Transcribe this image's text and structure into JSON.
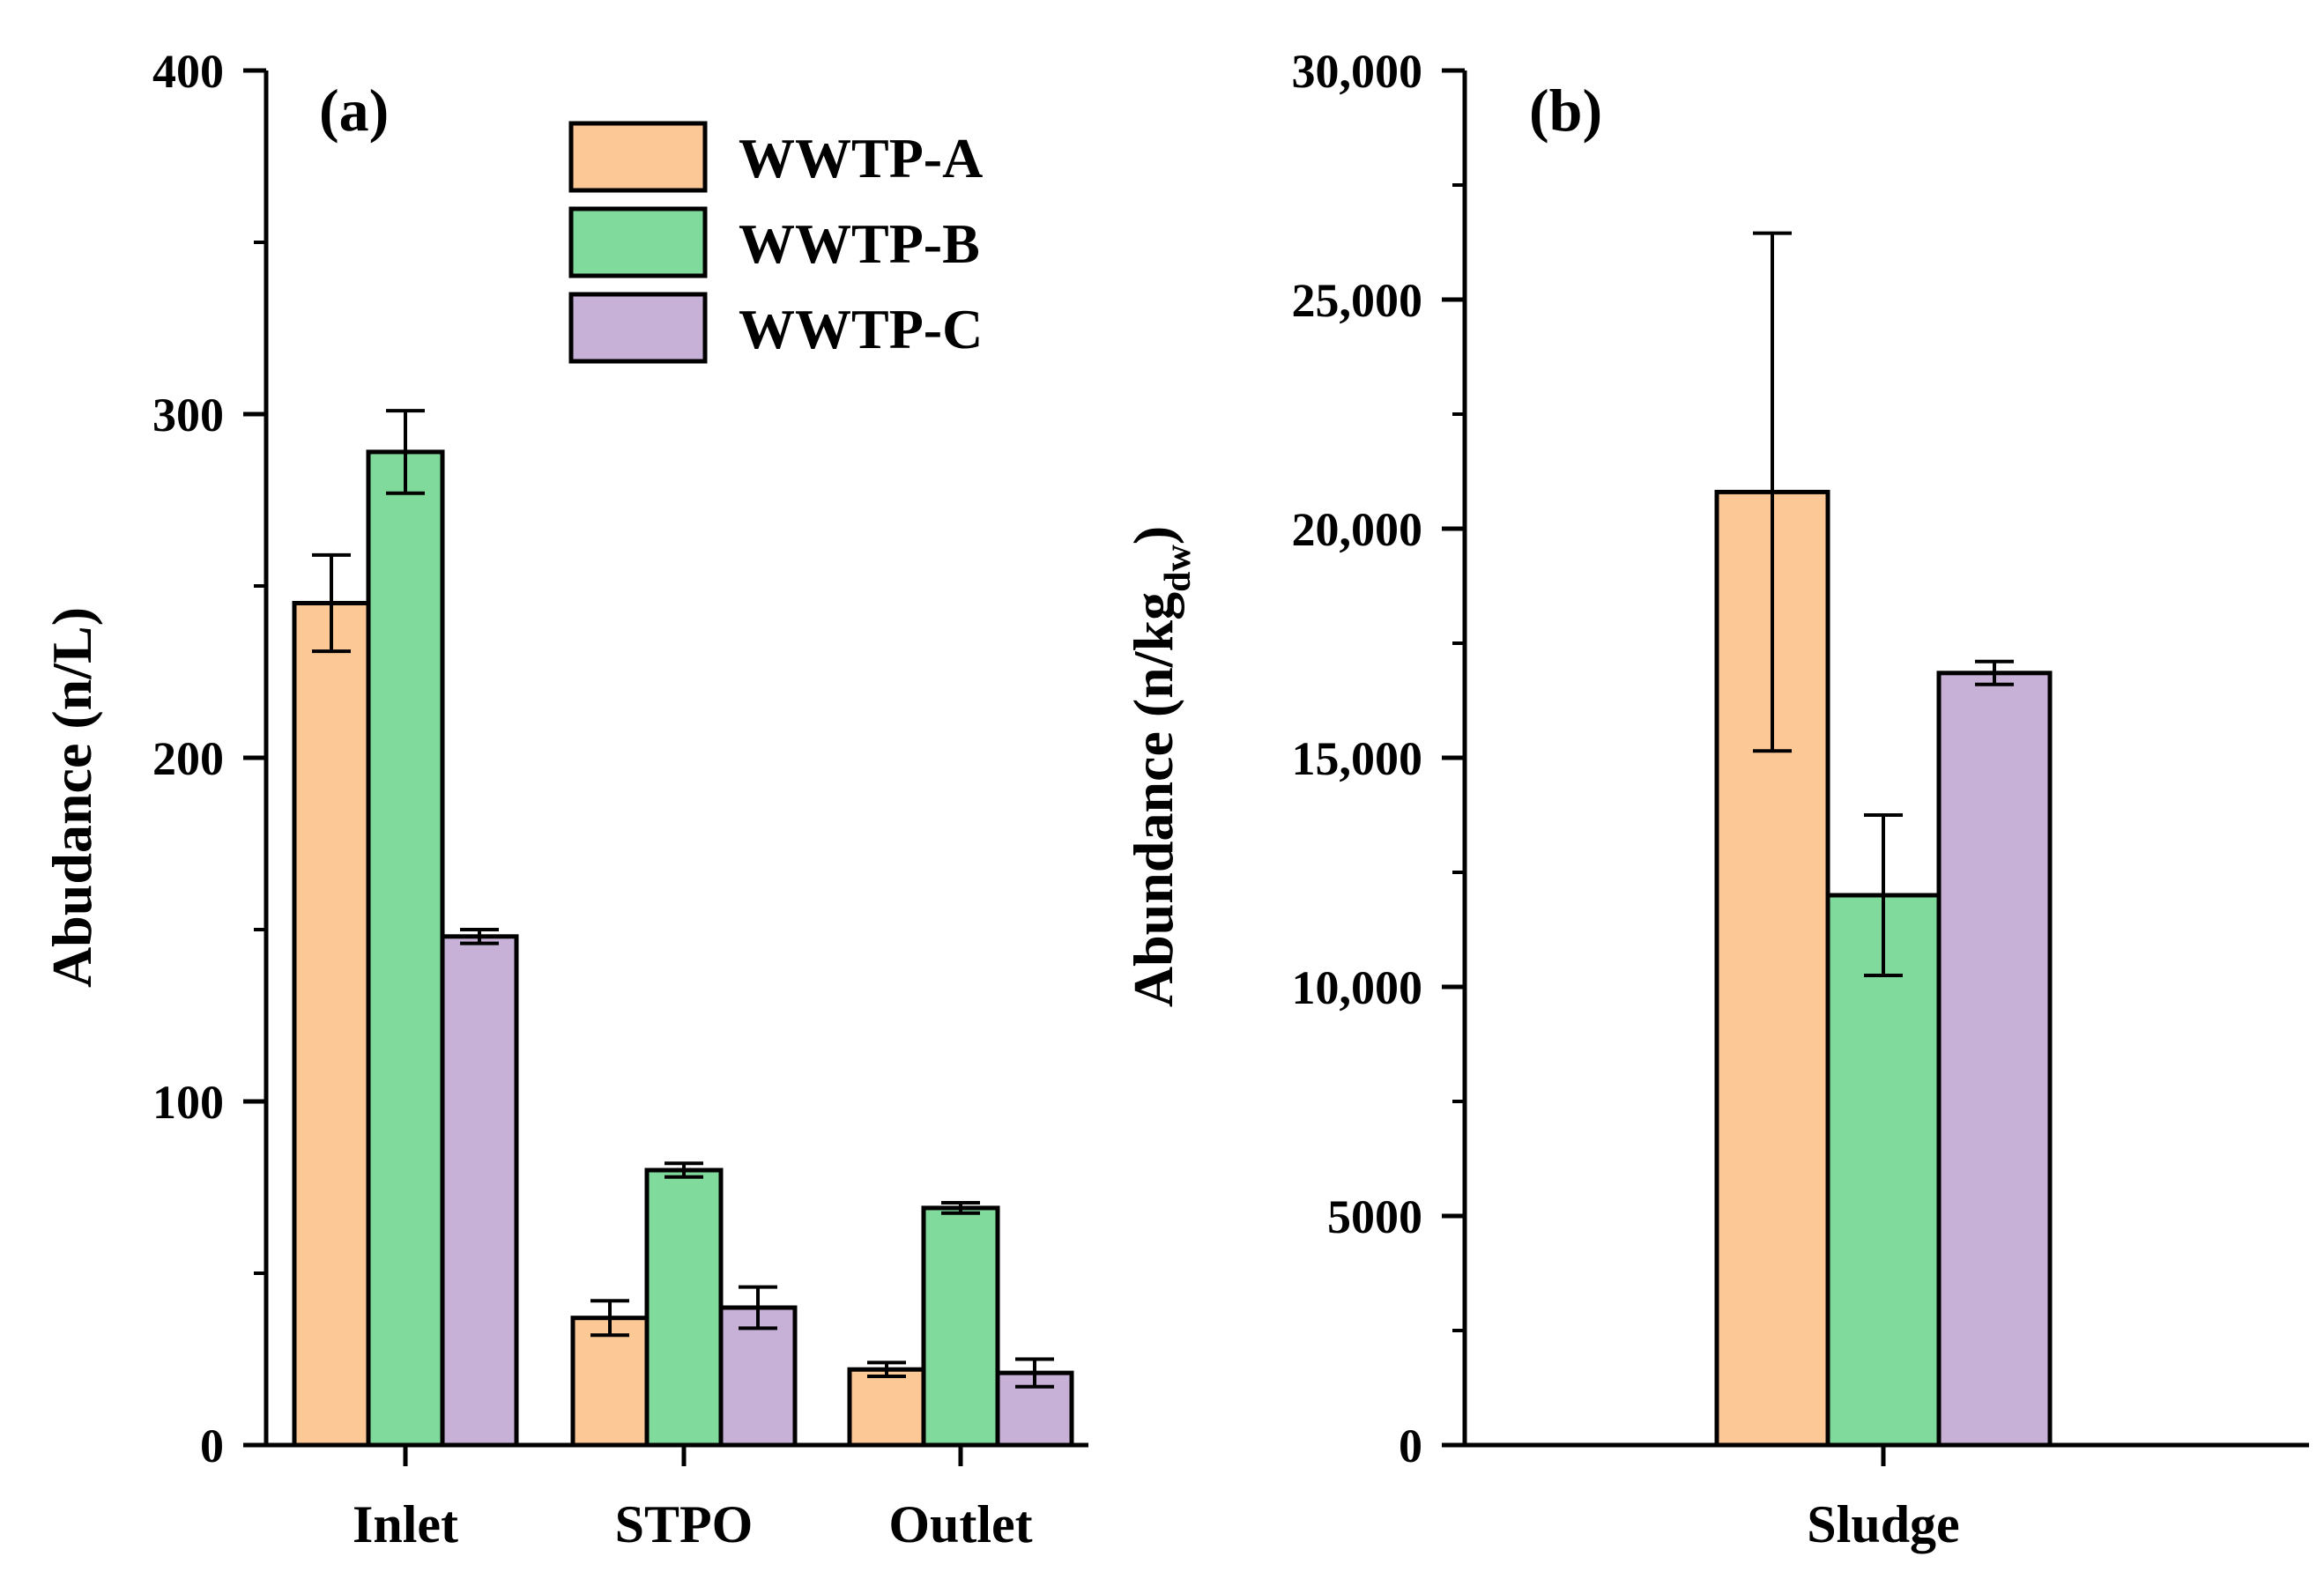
{
  "chart_data": [
    {
      "type": "bar",
      "panel_label": "(a)",
      "categories": [
        "Inlet",
        "STPO",
        "Outlet"
      ],
      "series": [
        {
          "name": "WWTP-A",
          "color": "#FCC896",
          "values": [
            245,
            37,
            22
          ],
          "errors": [
            14,
            5,
            2
          ]
        },
        {
          "name": "WWTP-B",
          "color": "#80DA9B",
          "values": [
            289,
            80,
            69
          ],
          "errors": [
            12,
            2,
            1.5
          ]
        },
        {
          "name": "WWTP-C",
          "color": "#C8B1D7",
          "values": [
            148,
            40,
            21
          ],
          "errors": [
            2,
            6,
            4
          ]
        }
      ],
      "ylabel": "Abudance (n/L)",
      "xlabel": "",
      "ylim": [
        0,
        400
      ],
      "yticks": [
        0,
        100,
        200,
        300,
        400
      ],
      "ytick_labels": [
        "0",
        "100",
        "200",
        "300",
        "400"
      ],
      "minor_yticks": [
        50,
        150,
        250,
        350
      ],
      "legend": {
        "entries": [
          "WWTP-A",
          "WWTP-B",
          "WWTP-C"
        ],
        "placement": "top-right"
      }
    },
    {
      "type": "bar",
      "panel_label": "(b)",
      "categories": [
        "Sludge"
      ],
      "series": [
        {
          "name": "WWTP-A",
          "color": "#FCC896",
          "values": [
            20800
          ],
          "errors": [
            5650
          ]
        },
        {
          "name": "WWTP-B",
          "color": "#80DA9B",
          "values": [
            12000
          ],
          "errors": [
            1750
          ]
        },
        {
          "name": "WWTP-C",
          "color": "#C8B1D7",
          "values": [
            16850
          ],
          "errors": [
            250
          ]
        }
      ],
      "ylabel_main": "Abundance (n/kg",
      "ylabel_sub": "dw",
      "ylabel_end": ")",
      "xlabel": "",
      "ylim": [
        0,
        30000
      ],
      "yticks": [
        0,
        5000,
        10000,
        15000,
        20000,
        25000,
        30000
      ],
      "ytick_labels": [
        "0",
        "5000",
        "10,000",
        "15,000",
        "20,000",
        "25,000",
        "30,000"
      ],
      "minor_yticks": [
        2500,
        7500,
        12500,
        17500,
        22500,
        27500
      ]
    }
  ]
}
